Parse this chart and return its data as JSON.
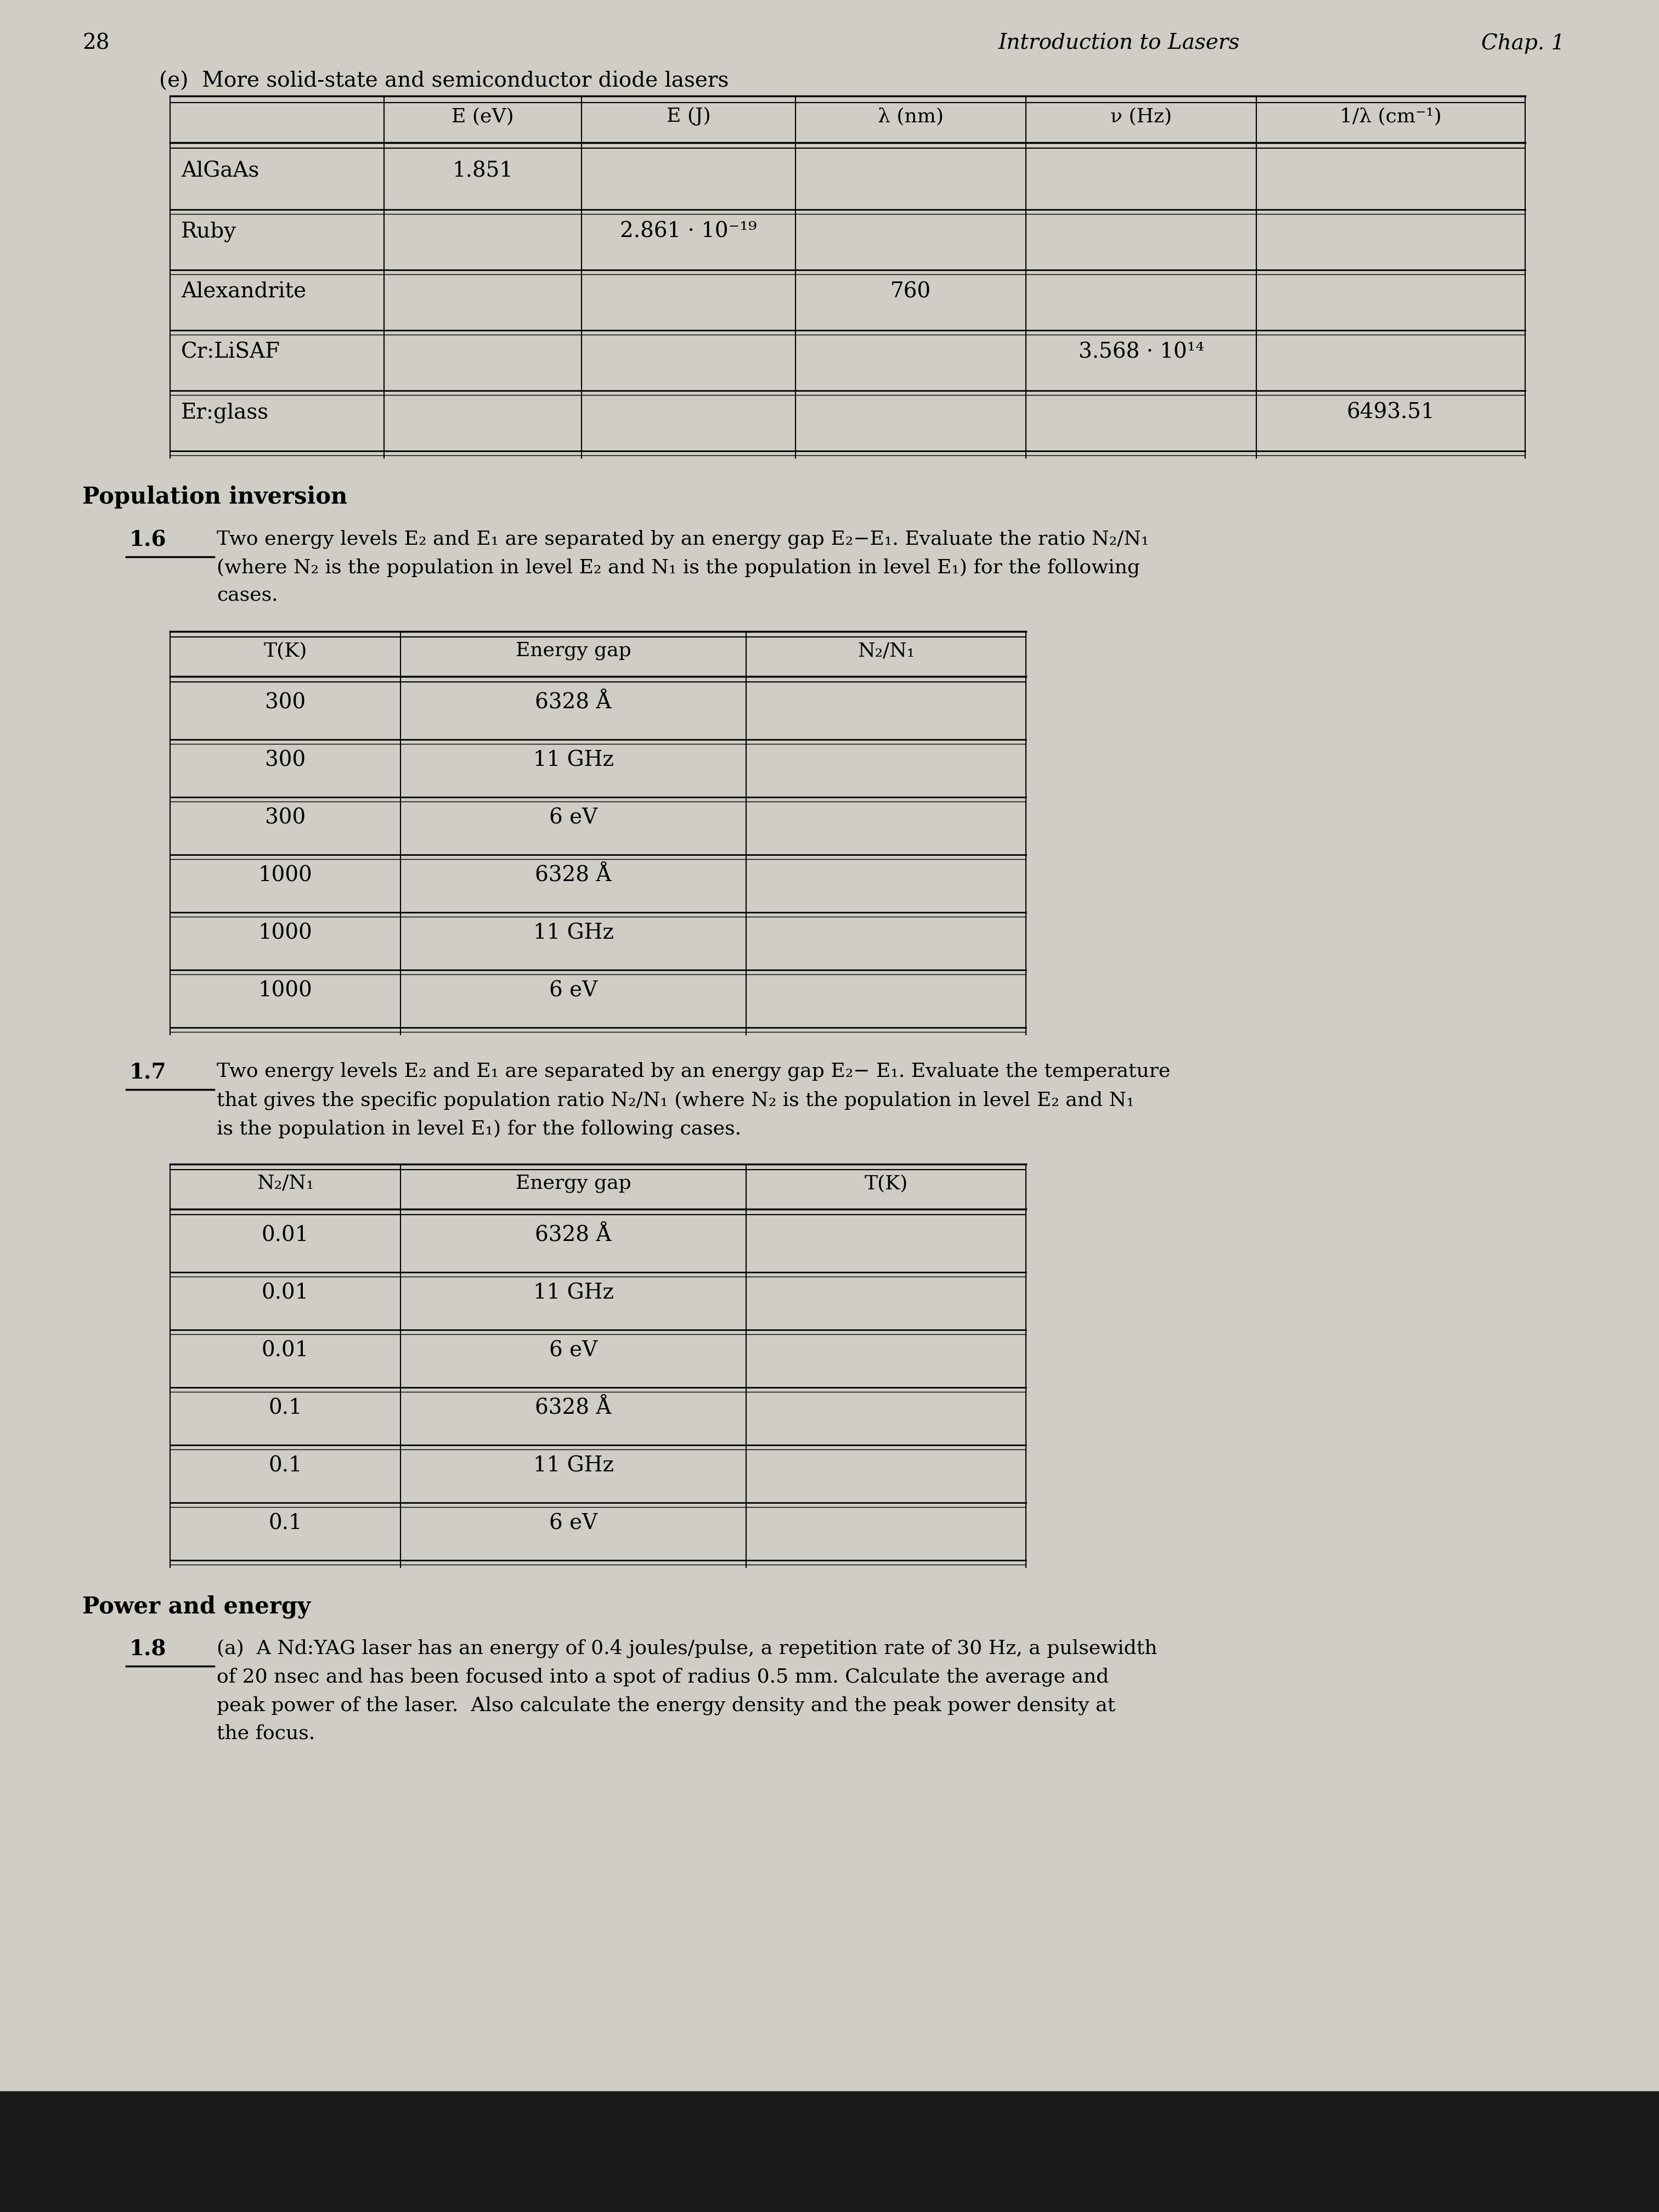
{
  "page_number": "28",
  "header_right": "Introduction to Lasers",
  "header_chap": "Chap. 1",
  "bg_color": "#d0cdc6",
  "section_e_title": "(e)  More solid-state and semiconductor diode lasers",
  "table1_headers": [
    "",
    "E (eV)",
    "E (J)",
    "λ (nm)",
    "ν (Hz)",
    "1/λ (cm⁻¹)"
  ],
  "table1_rows": [
    [
      "AlGaAs",
      "1.851",
      "",
      "",
      "",
      ""
    ],
    [
      "Ruby",
      "",
      "2.861 · 10⁻¹⁹",
      "",
      "",
      ""
    ],
    [
      "Alexandrite",
      "",
      "",
      "760",
      "",
      ""
    ],
    [
      "Cr:LiSAF",
      "",
      "",
      "",
      "3.568 · 10¹⁴",
      ""
    ],
    [
      "Er:glass",
      "",
      "",
      "",
      "",
      "6493.51"
    ]
  ],
  "section_pop_title": "Population inversion",
  "prob16_label": "1.6",
  "prob16_text_line1": "Two energy levels E₂ and E₁ are separated by an energy gap E₂−E₁. Evaluate the ratio N₂/N₁",
  "prob16_text_line2": "(where N₂ is the population in level E₂ and N₁ is the population in level E₁) for the following",
  "prob16_text_line3": "cases.",
  "table2_headers": [
    "T(K)",
    "Energy gap",
    "N₂/N₁"
  ],
  "table2_rows": [
    [
      "300",
      "6328 Å",
      ""
    ],
    [
      "300",
      "11 GHz",
      ""
    ],
    [
      "300",
      "6 eV",
      ""
    ],
    [
      "1000",
      "6328 Å",
      ""
    ],
    [
      "1000",
      "11 GHz",
      ""
    ],
    [
      "1000",
      "6 eV",
      ""
    ]
  ],
  "prob17_label": "1.7",
  "prob17_text_line1": "Two energy levels E₂ and E₁ are separated by an energy gap E₂− E₁. Evaluate the temperature",
  "prob17_text_line2": "that gives the specific population ratio N₂/N₁ (where N₂ is the population in level E₂ and N₁",
  "prob17_text_line3": "is the population in level E₁) for the following cases.",
  "table3_headers": [
    "N₂/N₁",
    "Energy gap",
    "T(K)"
  ],
  "table3_rows": [
    [
      "0.01",
      "6328 Å",
      ""
    ],
    [
      "0.01",
      "11 GHz",
      ""
    ],
    [
      "0.01",
      "6 eV",
      ""
    ],
    [
      "0.1",
      "6328 Å",
      ""
    ],
    [
      "0.1",
      "11 GHz",
      ""
    ],
    [
      "0.1",
      "6 eV",
      ""
    ]
  ],
  "section_power_title": "Power and energy",
  "prob18_label": "1.8",
  "prob18_text_line1": "(a)  A Nd:YAG laser has an energy of 0.4 joules/pulse, a repetition rate of 30 Hz, a pulsewidth",
  "prob18_text_line2": "of 20 nsec and has been focused into a spot of radius 0.5 mm. Calculate the average and",
  "prob18_text_line3": "peak power of the laser.  Also calculate the energy density and the peak power density at",
  "prob18_text_line4": "the focus."
}
